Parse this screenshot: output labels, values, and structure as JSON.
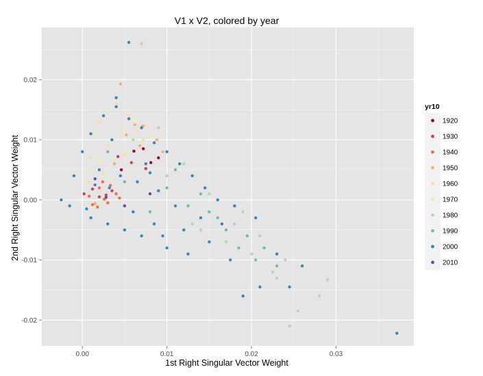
{
  "chart_data": {
    "type": "scatter",
    "title": "V1 x V2, colored by year",
    "xlabel": "1st Right Singular Vector Weight",
    "ylabel": "2nd Right Singular Vector Weight",
    "xlim": [
      -0.0048,
      0.0392
    ],
    "ylim": [
      -0.0243,
      0.0287
    ],
    "x_ticks": [
      0.0,
      0.01,
      0.02,
      0.03
    ],
    "x_tick_labels": [
      "0.00",
      "0.01",
      "0.02",
      "0.03"
    ],
    "y_ticks": [
      -0.02,
      -0.01,
      0.0,
      0.01,
      0.02
    ],
    "y_tick_labels": [
      "-0.02",
      "-0.01",
      "0.00",
      "0.01",
      "0.02"
    ],
    "grid": true,
    "legend": {
      "title": "yr10",
      "placement": "right",
      "items": [
        {
          "label": "1920",
          "color": "#9E0142"
        },
        {
          "label": "1930",
          "color": "#D53E4F"
        },
        {
          "label": "1940",
          "color": "#F46D43"
        },
        {
          "label": "1950",
          "color": "#FDAE61"
        },
        {
          "label": "1960",
          "color": "#FEE08B"
        },
        {
          "label": "1970",
          "color": "#E6F598"
        },
        {
          "label": "1980",
          "color": "#ABDDA4"
        },
        {
          "label": "1990",
          "color": "#66C2A5"
        },
        {
          "label": "2000",
          "color": "#3288BD"
        },
        {
          "label": "2010",
          "color": "#5E4FA2"
        }
      ]
    },
    "series": [
      {
        "name": "1920",
        "points": [
          [
            0.0072,
            0.0085
          ],
          [
            0.0081,
            0.0062
          ],
          [
            0.0046,
            0.005
          ],
          [
            0.009,
            0.007
          ],
          [
            0.0061,
            0.0081
          ]
        ]
      },
      {
        "name": "1930",
        "points": [
          [
            0.0012,
            0.0018
          ],
          [
            0.0028,
            0.0008
          ],
          [
            0.0058,
            0.0062
          ],
          [
            0.0075,
            0.0052
          ],
          [
            0.002,
            0.0005
          ],
          [
            0.0035,
            0.0015
          ],
          [
            0.0002,
            0.001
          ],
          [
            0.0042,
            0.0072
          ]
        ]
      },
      {
        "name": "1940",
        "points": [
          [
            0.002,
            0.002
          ],
          [
            0.003,
            -0.0005
          ],
          [
            0.0012,
            -0.0008
          ],
          [
            0.004,
            0.001
          ],
          [
            0.0024,
            0.003
          ],
          [
            0.0008,
            0.0006
          ],
          [
            0.0033,
            0.0024
          ],
          [
            0.0018,
            -0.0012
          ],
          [
            0.0044,
            0.0003
          ],
          [
            0.0026,
            0.0001
          ]
        ]
      },
      {
        "name": "1950",
        "points": [
          [
            0.0045,
            0.0193
          ],
          [
            0.0062,
            0.0125
          ],
          [
            0.0088,
            0.01
          ],
          [
            0.0052,
            0.0108
          ],
          [
            0.0068,
            0.009
          ],
          [
            0.0095,
            0.008
          ],
          [
            0.0038,
            0.006
          ],
          [
            0.0072,
            0.0123
          ],
          [
            0.0015,
            -0.0006
          ]
        ]
      },
      {
        "name": "1960",
        "points": [
          [
            0.004,
            0.016
          ],
          [
            0.0055,
            0.014
          ],
          [
            0.002,
            0.013
          ],
          [
            0.0065,
            0.0115
          ],
          [
            0.001,
            0.007
          ],
          [
            0.003,
            0.009
          ],
          [
            0.005,
            0.0075
          ],
          [
            0.0072,
            0.01
          ],
          [
            0.0025,
            0.0045
          ],
          [
            0.0008,
            0.003
          ]
        ]
      },
      {
        "name": "1970",
        "points": [
          [
            0.003,
            0.015
          ],
          [
            0.006,
            0.0135
          ],
          [
            0.0015,
            0.011
          ],
          [
            0.0045,
            0.012
          ],
          [
            0.008,
            0.0105
          ],
          [
            0.002,
            0.0065
          ],
          [
            0.0055,
            0.008
          ],
          [
            0.0035,
            0.0035
          ],
          [
            0.001,
            0.005
          ],
          [
            0.007,
            0.006
          ]
        ]
      },
      {
        "name": "1980",
        "points": [
          [
            0.007,
            0.026
          ],
          [
            0.009,
            0.012
          ],
          [
            0.012,
            0.006
          ],
          [
            0.015,
            0.001
          ],
          [
            0.018,
            -0.004
          ],
          [
            0.021,
            -0.006
          ],
          [
            0.023,
            -0.013
          ],
          [
            0.028,
            -0.016
          ],
          [
            0.029,
            -0.0133
          ],
          [
            0.0245,
            -0.021
          ],
          [
            0.0255,
            -0.0185
          ],
          [
            0.02,
            -0.009
          ],
          [
            0.017,
            -0.007
          ],
          [
            0.014,
            -0.005
          ],
          [
            0.01,
            0.004
          ],
          [
            0.006,
            0.01
          ],
          [
            0.024,
            -0.01
          ],
          [
            0.0225,
            -0.012
          ],
          [
            0.019,
            -0.002
          ],
          [
            0.013,
            -0.004
          ]
        ]
      },
      {
        "name": "1990",
        "points": [
          [
            0.011,
            0.005
          ],
          [
            0.0125,
            -0.001
          ],
          [
            0.016,
            -0.003
          ],
          [
            0.0195,
            -0.006
          ],
          [
            0.0215,
            -0.008
          ],
          [
            0.023,
            -0.011
          ],
          [
            0.0185,
            -0.008
          ],
          [
            0.015,
            -0.002
          ],
          [
            0.01,
            0.002
          ],
          [
            0.008,
            -0.002
          ],
          [
            0.005,
            0.003
          ],
          [
            0.003,
            0.008
          ],
          [
            0.014,
            0.001
          ],
          [
            0.017,
            -0.005
          ],
          [
            0.0205,
            -0.01
          ]
        ]
      },
      {
        "name": "2000",
        "points": [
          [
            0.0055,
            0.0262
          ],
          [
            0.0372,
            -0.0222
          ],
          [
            0.026,
            -0.011
          ],
          [
            0.0245,
            -0.0145
          ],
          [
            0.021,
            -0.0145
          ],
          [
            0.019,
            -0.016
          ],
          [
            0.0175,
            -0.01
          ],
          [
            0.023,
            -0.009
          ],
          [
            0.0205,
            -0.003
          ],
          [
            0.018,
            -0.001
          ],
          [
            0.0165,
            -0.004
          ],
          [
            0.015,
            -0.007
          ],
          [
            0.012,
            -0.005
          ],
          [
            0.01,
            -0.008
          ],
          [
            0.0085,
            -0.004
          ],
          [
            0.007,
            -0.006
          ],
          [
            0.005,
            -0.005
          ],
          [
            0.003,
            -0.004
          ],
          [
            0.001,
            -0.003
          ],
          [
            -0.0015,
            -0.001
          ],
          [
            -0.0025,
            0.0
          ],
          [
            -0.001,
            0.004
          ],
          [
            0.0,
            0.008
          ],
          [
            0.001,
            0.011
          ],
          [
            0.0025,
            0.014
          ],
          [
            0.004,
            0.0155
          ],
          [
            0.0055,
            0.0135
          ],
          [
            0.007,
            0.012
          ],
          [
            0.0085,
            0.0095
          ],
          [
            0.01,
            0.008
          ],
          [
            0.0115,
            0.006
          ],
          [
            0.013,
            0.004
          ],
          [
            0.0145,
            0.002
          ],
          [
            0.016,
            0.0
          ],
          [
            0.002,
            0.005
          ],
          [
            0.0045,
            0.004
          ],
          [
            0.0065,
            0.003
          ],
          [
            0.009,
            0.0015
          ],
          [
            0.011,
            -0.001
          ],
          [
            0.0075,
            0.006
          ],
          [
            0.0035,
            0.01
          ],
          [
            0.0015,
            0.0025
          ],
          [
            0.006,
            -0.002
          ],
          [
            0.0095,
            -0.006
          ],
          [
            0.014,
            -0.003
          ],
          [
            0.0125,
            -0.009
          ],
          [
            0.004,
            0.017
          ],
          [
            0.0032,
            0.002
          ],
          [
            0.0005,
            -0.0015
          ],
          [
            0.008,
            0.0045
          ]
        ]
      },
      {
        "name": "2010",
        "points": [
          [
            0.0028,
            0.0004
          ],
          [
            0.005,
            -0.001
          ],
          [
            0.008,
            0.001
          ],
          [
            0.0015,
            0.0035
          ]
        ]
      }
    ]
  }
}
